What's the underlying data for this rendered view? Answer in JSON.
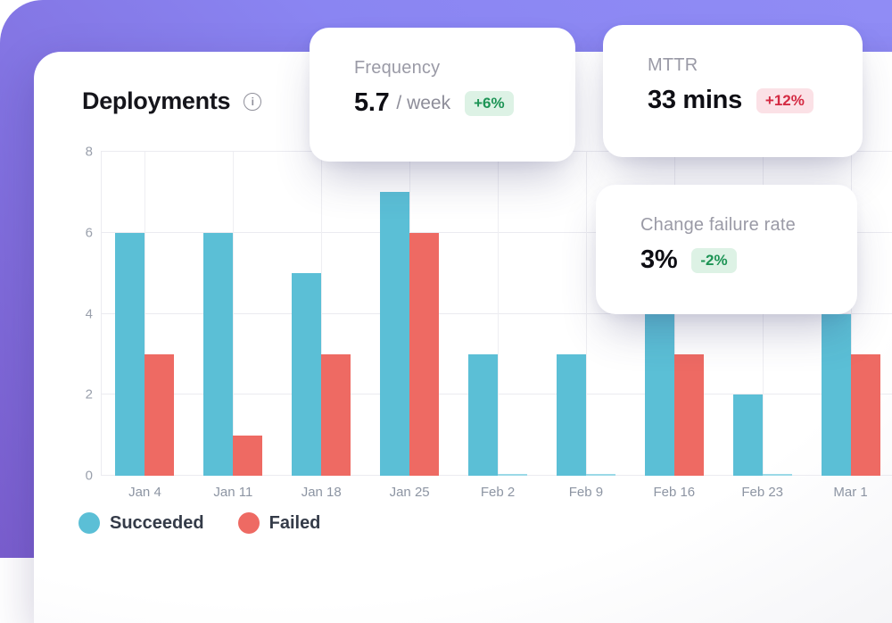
{
  "header": {
    "title": "Deployments"
  },
  "metric_cards": [
    {
      "id": "frequency",
      "label": "Frequency",
      "value": "5.7",
      "unit": "/ week",
      "delta": "+6%",
      "delta_kind": "positive"
    },
    {
      "id": "mttr",
      "label": "MTTR",
      "value": "33 mins",
      "unit": "",
      "delta": "+12%",
      "delta_kind": "negative"
    },
    {
      "id": "change-failure-rate",
      "label": "Change failure rate",
      "value": "3%",
      "unit": "",
      "delta": "-2%",
      "delta_kind": "positive"
    }
  ],
  "chart_data": {
    "type": "bar",
    "title": "Deployments",
    "categories": [
      "Jan 4",
      "Jan 11",
      "Jan 18",
      "Jan 25",
      "Feb 2",
      "Feb 9",
      "Feb 16",
      "Feb 23",
      "Mar 1"
    ],
    "series": [
      {
        "name": "Succeeded",
        "color": "#5BBFD6",
        "values": [
          6,
          6,
          5,
          7,
          3,
          3,
          4,
          2,
          4
        ]
      },
      {
        "name": "Failed",
        "color": "#EE6A63",
        "values": [
          3,
          1,
          3,
          6,
          0,
          0,
          3,
          0,
          3
        ]
      }
    ],
    "xlabel": "",
    "ylabel": "",
    "ylim": [
      0,
      8
    ],
    "yticks": [
      0,
      2,
      4,
      6,
      8
    ],
    "grid": true,
    "legend_position": "bottom-left",
    "zero_bar_color": "#9BD9E7"
  },
  "legend": [
    {
      "label": "Succeeded",
      "color": "#5BBFD6"
    },
    {
      "label": "Failed",
      "color": "#EE6A63"
    }
  ],
  "colors": {
    "background_light": "#8E8AF4",
    "background_dark": "#7A5ECE",
    "card_surface": "#FFFFFF",
    "positive_text": "#1D9455",
    "positive_bg": "#DDF2E5",
    "negative_text": "#D42A42",
    "negative_bg": "#FBE1E6",
    "succeeded": "#5BBFD6",
    "failed": "#EE6A63"
  }
}
